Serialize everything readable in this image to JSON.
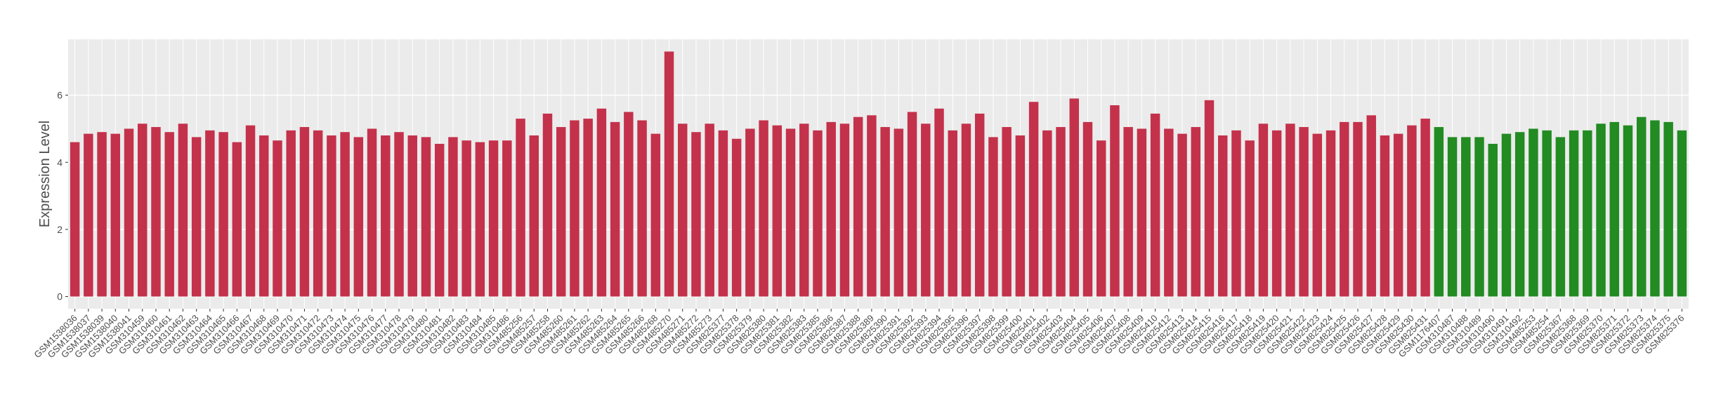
{
  "chart_data": {
    "type": "bar",
    "y_label": "Expression Level",
    "ylim": [
      -0.365,
      7.665
    ],
    "yticks": [
      0,
      2,
      4,
      6
    ],
    "grid": true,
    "series": [
      {
        "color": "#c4314b",
        "categories": [
          "GSM1538036",
          "GSM1538037",
          "GSM1538039",
          "GSM1538040",
          "GSM1538041",
          "GSM310459",
          "GSM310460",
          "GSM310461",
          "GSM310462",
          "GSM310463",
          "GSM310464",
          "GSM310465",
          "GSM310466",
          "GSM310467",
          "GSM310468",
          "GSM310469",
          "GSM310470",
          "GSM310471",
          "GSM310472",
          "GSM310473",
          "GSM310474",
          "GSM310475",
          "GSM310476",
          "GSM310477",
          "GSM310478",
          "GSM310479",
          "GSM310480",
          "GSM310481",
          "GSM310482",
          "GSM310483",
          "GSM310484",
          "GSM310485",
          "GSM310486",
          "GSM485256",
          "GSM485257",
          "GSM485258",
          "GSM485260",
          "GSM485261",
          "GSM485262",
          "GSM485263",
          "GSM485264",
          "GSM485265",
          "GSM485266",
          "GSM485268",
          "GSM485270",
          "GSM485271",
          "GSM485272",
          "GSM485273",
          "GSM825377",
          "GSM825378",
          "GSM825379",
          "GSM825380",
          "GSM825381",
          "GSM825382",
          "GSM825383",
          "GSM825385",
          "GSM825386",
          "GSM825387",
          "GSM825388",
          "GSM825389",
          "GSM825390",
          "GSM825391",
          "GSM825392",
          "GSM825393",
          "GSM825394",
          "GSM825395",
          "GSM825396",
          "GSM825397",
          "GSM825398",
          "GSM825399",
          "GSM825400",
          "GSM825401",
          "GSM825402",
          "GSM825403",
          "GSM825404",
          "GSM825405",
          "GSM825406",
          "GSM825407",
          "GSM825408",
          "GSM825409",
          "GSM825410",
          "GSM825412",
          "GSM825413",
          "GSM825414",
          "GSM825415",
          "GSM825416",
          "GSM825417",
          "GSM825418",
          "GSM825419",
          "GSM825420",
          "GSM825421",
          "GSM825422",
          "GSM825423",
          "GSM825424",
          "GSM825425",
          "GSM825426",
          "GSM825427",
          "GSM825428",
          "GSM825429",
          "GSM825430",
          "GSM825431"
        ],
        "values": [
          4.6,
          4.85,
          4.9,
          4.85,
          5.0,
          5.15,
          5.05,
          4.9,
          5.15,
          4.75,
          4.95,
          4.9,
          4.6,
          5.1,
          4.8,
          4.65,
          4.95,
          5.05,
          4.95,
          4.8,
          4.9,
          4.75,
          5.0,
          4.8,
          4.9,
          4.8,
          4.75,
          4.55,
          4.75,
          4.65,
          4.6,
          4.65,
          4.65,
          5.3,
          4.8,
          5.45,
          5.05,
          5.25,
          5.3,
          5.6,
          5.2,
          5.5,
          5.25,
          4.85,
          7.3,
          5.15,
          4.9,
          5.15,
          4.95,
          4.7,
          5.0,
          5.25,
          5.1,
          5.0,
          5.15,
          4.95,
          5.2,
          5.15,
          5.35,
          5.4,
          5.05,
          5.0,
          5.5,
          5.15,
          5.6,
          4.95,
          5.15,
          5.45,
          4.75,
          5.05,
          4.8,
          5.8,
          4.95,
          5.05,
          5.9,
          5.2,
          4.65,
          5.7,
          5.05,
          5.0,
          5.45,
          5.0,
          4.85,
          5.05,
          5.85,
          4.8,
          4.95,
          4.65,
          5.15,
          4.95,
          5.15,
          5.05,
          4.85,
          4.95,
          5.2,
          5.2,
          5.4,
          4.8,
          4.85,
          5.1,
          5.3
        ]
      },
      {
        "color": "#228b22",
        "categories": [
          "GSM1176407",
          "GSM310487",
          "GSM310488",
          "GSM310489",
          "GSM310490",
          "GSM310491",
          "GSM310492",
          "GSM485253",
          "GSM485254",
          "GSM825367",
          "GSM825368",
          "GSM825369",
          "GSM825370",
          "GSM825371",
          "GSM825372",
          "GSM825373",
          "GSM825374",
          "GSM825375",
          "GSM825376"
        ],
        "values": [
          5.05,
          4.75,
          4.75,
          4.75,
          4.55,
          4.85,
          4.9,
          5.0,
          4.95,
          4.75,
          4.95,
          4.95,
          5.15,
          5.2,
          5.1,
          5.35,
          5.25,
          5.2,
          4.95
        ]
      }
    ]
  }
}
